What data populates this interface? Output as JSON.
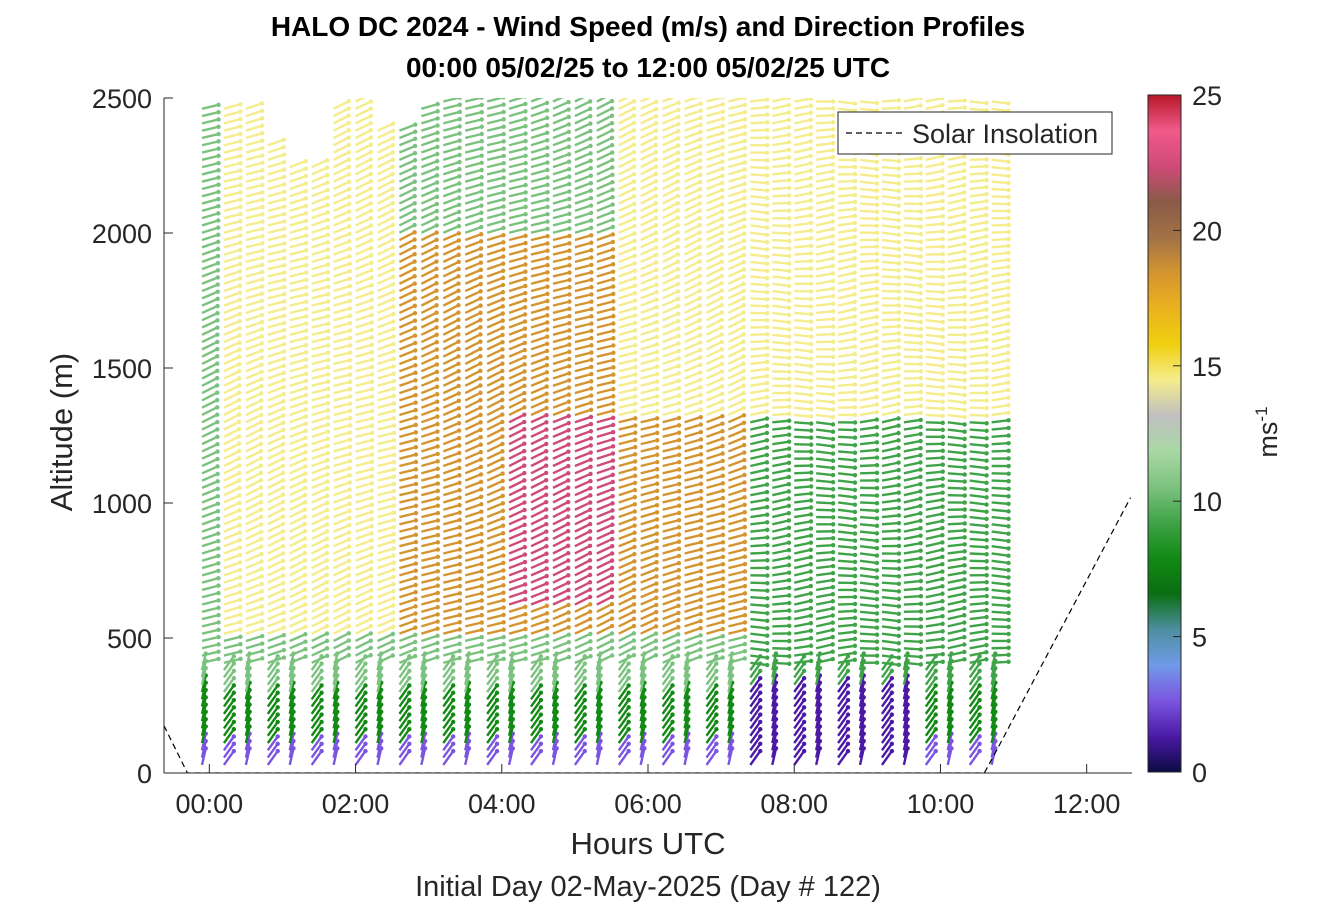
{
  "title_line1": "HALO DC 2024 - Wind Speed (m/s) and Direction Profiles",
  "title_line2": "00:00 05/02/25 to 12:00 05/02/25  UTC",
  "subtitle": "Initial Day 02-May-2025 (Day # 122)",
  "colorbar_label": "ms",
  "colorbar_label_exp": "-1",
  "chart_data": {
    "type": "wind-barb-profile",
    "xlabel": "Hours UTC",
    "ylabel": "Altitude (m)",
    "x_ticks": [
      "00:00",
      "02:00",
      "04:00",
      "06:00",
      "08:00",
      "10:00",
      "12:00"
    ],
    "x_tick_hours": [
      0,
      2,
      4,
      6,
      8,
      10,
      12
    ],
    "xlim_hours": [
      -0.62,
      12.62
    ],
    "y_ticks": [
      0,
      500,
      1000,
      1500,
      2000,
      2500
    ],
    "ylim": [
      0,
      2500
    ],
    "colorbar": {
      "ticks": [
        0,
        5,
        10,
        15,
        20,
        25
      ],
      "range": [
        0,
        25
      ],
      "colors": [
        "#0c0a45",
        "#4a1aa6",
        "#7b55e0",
        "#6f9ae8",
        "#4d8fa0",
        "#0a6e12",
        "#128a14",
        "#3fa348",
        "#7cc27f",
        "#a9d8a4",
        "#c0c0c0",
        "#f5ec8c",
        "#f0d010",
        "#eab21e",
        "#d49530",
        "#a27246",
        "#8a5a48",
        "#d04a78",
        "#f05a8a",
        "#b81828"
      ]
    },
    "legend": {
      "label": "Solar Insolation",
      "position": "top-right",
      "style": "dashed"
    },
    "solar_insolation": {
      "x_hours": [
        -0.62,
        -0.3,
        -0.2,
        10.6,
        10.8,
        12.6
      ],
      "y": [
        175,
        0,
        0,
        0,
        100,
        1020
      ]
    },
    "profile_times_hours": [
      -0.1,
      0.2,
      0.5,
      0.8,
      1.1,
      1.4,
      1.7,
      2.0,
      2.3,
      2.6,
      2.9,
      3.2,
      3.5,
      3.8,
      4.1,
      4.4,
      4.7,
      5.0,
      5.3,
      5.6,
      5.9,
      6.2,
      6.5,
      6.8,
      7.1,
      7.4,
      7.7,
      8.0,
      8.3,
      8.6,
      8.9,
      9.2,
      9.5,
      9.8,
      10.1,
      10.4,
      10.7
    ],
    "profile_top_m": [
      2470,
      2470,
      2470,
      2330,
      2250,
      2250,
      2470,
      2490,
      2380,
      2380,
      2470,
      2490,
      2490,
      2490,
      2490,
      2490,
      2490,
      2490,
      2490,
      2490,
      2490,
      2490,
      2490,
      2490,
      2490,
      2490,
      2490,
      2490,
      2490,
      2490,
      2490,
      2490,
      2490,
      2490,
      2490,
      2490,
      2490
    ],
    "speed_regions_ms": [
      {
        "t_hours": [
          -0.2,
          10.8
        ],
        "alt_m": [
          0,
          100
        ],
        "speed": 3
      },
      {
        "t_hours": [
          -0.2,
          10.8
        ],
        "alt_m": [
          100,
          300
        ],
        "speed": 8
      },
      {
        "t_hours": [
          0,
          7.3
        ],
        "alt_m": [
          300,
          500
        ],
        "speed": 11
      },
      {
        "t_hours": [
          0,
          2.5
        ],
        "alt_m": [
          500,
          2500
        ],
        "speed": 15
      },
      {
        "t_hours": [
          2.5,
          7.3
        ],
        "alt_m": [
          500,
          2000
        ],
        "speed": 19
      },
      {
        "t_hours": [
          4.0,
          5.5
        ],
        "alt_m": [
          600,
          1300
        ],
        "speed": 23
      },
      {
        "t_hours": [
          7.3,
          10.8
        ],
        "alt_m": [
          300,
          2200
        ],
        "speed": 9
      },
      {
        "t_hours": [
          7.3,
          9.5
        ],
        "alt_m": [
          0,
          300
        ],
        "speed": 1.5
      },
      {
        "t_hours": [
          5.5,
          10.8
        ],
        "alt_m": [
          1300,
          2500
        ],
        "speed": 14
      }
    ]
  }
}
